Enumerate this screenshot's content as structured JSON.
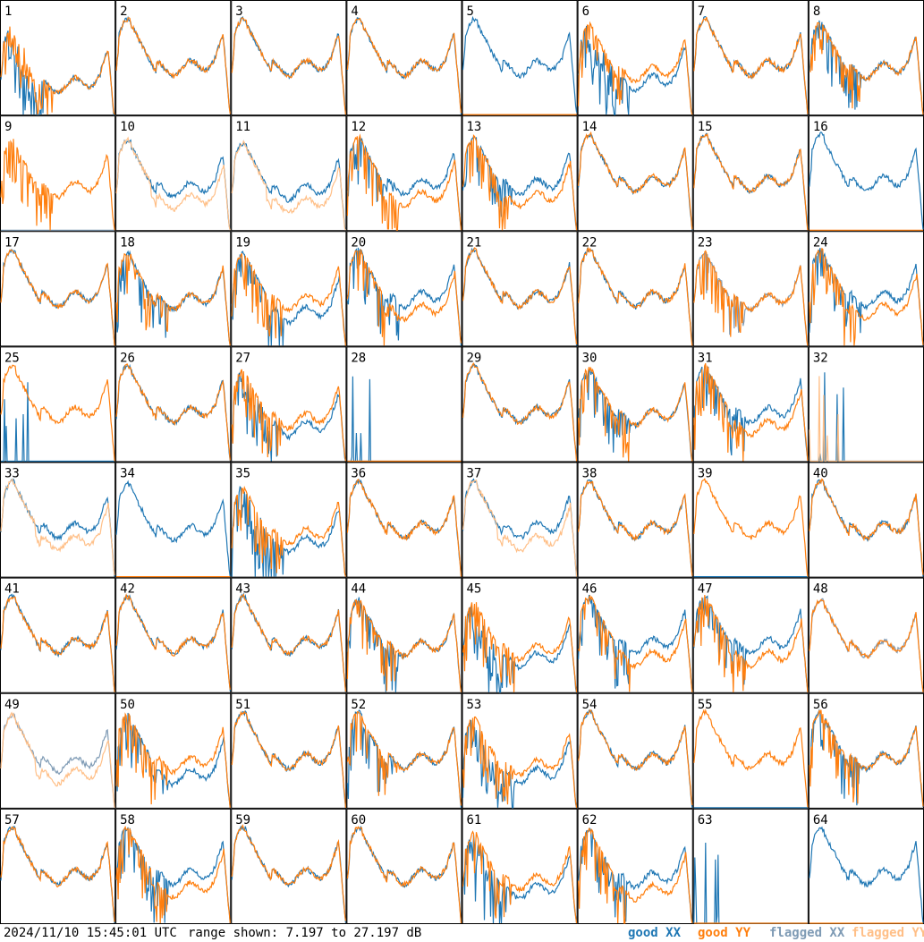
{
  "footer": {
    "timestamp": "2024/11/10 15:45:01 UTC",
    "range_text": "range shown: 7.197 to 27.197 dB",
    "legend": [
      {
        "label": "good XX",
        "color": "#1f77b4"
      },
      {
        "label": "good YY",
        "color": "#ff7f0e"
      },
      {
        "label": "flagged XX",
        "color": "#7f9bb5"
      },
      {
        "label": "flagged YY",
        "color": "#ffbf87"
      }
    ]
  },
  "chart_data": {
    "type": "line",
    "grid": {
      "rows": 8,
      "cols": 8
    },
    "ylim": [
      7.197,
      27.197
    ],
    "y_unit": "dB",
    "panels": [
      {
        "label": "1",
        "xx": "d",
        "yy": "d",
        "shift": -1.5,
        "spiky": 1
      },
      {
        "label": "2",
        "xx": "n",
        "yy": "n",
        "shift": 0,
        "spiky": 0
      },
      {
        "label": "3",
        "xx": "n",
        "yy": "n",
        "shift": 0,
        "spiky": 0
      },
      {
        "label": "4",
        "xx": "n",
        "yy": "n",
        "shift": 0,
        "spiky": 0
      },
      {
        "label": "5",
        "xx": "n",
        "yy": "z",
        "shift": 0,
        "spiky": 0
      },
      {
        "label": "6",
        "xx": "d",
        "yy": "n",
        "shift": -1,
        "spiky": 1
      },
      {
        "label": "7",
        "xx": "n",
        "yy": "n",
        "shift": 0,
        "spiky": 0
      },
      {
        "label": "8",
        "xx": "n",
        "yy": "s",
        "shift": -0.5,
        "spiky": 1
      },
      {
        "label": "9",
        "xx": "fz",
        "yy": "n",
        "shift": -1,
        "spiky": 1
      },
      {
        "label": "10",
        "xx": "n",
        "yy": "fl",
        "shift": -1,
        "spiky": 0
      },
      {
        "label": "11",
        "xx": "n",
        "yy": "fl",
        "shift": -1.5,
        "spiky": 0
      },
      {
        "label": "12",
        "xx": "n",
        "yy": "l",
        "shift": -0.5,
        "spiky": 1
      },
      {
        "label": "13",
        "xx": "n",
        "yy": "l",
        "shift": -0.5,
        "spiky": 1
      },
      {
        "label": "14",
        "xx": "n",
        "yy": "n",
        "shift": 0,
        "spiky": 0
      },
      {
        "label": "15",
        "xx": "n",
        "yy": "n",
        "shift": 0,
        "spiky": 0
      },
      {
        "label": "16",
        "xx": "n",
        "yy": "z",
        "shift": 0,
        "spiky": 0
      },
      {
        "label": "17",
        "xx": "n",
        "yy": "n",
        "shift": 0,
        "spiky": 0
      },
      {
        "label": "18",
        "xx": "n",
        "yy": "n",
        "shift": -0.5,
        "spiky": 1
      },
      {
        "label": "19",
        "xx": "l",
        "yy": "n",
        "shift": -0.5,
        "spiky": 1
      },
      {
        "label": "20",
        "xx": "n",
        "yy": "l",
        "shift": 0,
        "spiky": 1
      },
      {
        "label": "21",
        "xx": "n",
        "yy": "n",
        "shift": 0,
        "spiky": 0
      },
      {
        "label": "22",
        "xx": "n",
        "yy": "n",
        "shift": 0,
        "spiky": 0
      },
      {
        "label": "23",
        "xx": "fn",
        "yy": "n",
        "shift": -0.5,
        "spiky": 1
      },
      {
        "label": "24",
        "xx": "n",
        "yy": "l",
        "shift": 0,
        "spiky": 1
      },
      {
        "label": "25",
        "xx": "h",
        "yy": "n",
        "shift": 0,
        "spiky": 0
      },
      {
        "label": "26",
        "xx": "n",
        "yy": "n",
        "shift": 0,
        "spiky": 0
      },
      {
        "label": "27",
        "xx": "d",
        "yy": "n",
        "shift": -1,
        "spiky": 1
      },
      {
        "label": "28",
        "xx": "h",
        "yy": "z",
        "shift": 0,
        "spiky": 0
      },
      {
        "label": "29",
        "xx": "n",
        "yy": "n",
        "shift": 0,
        "spiky": 0
      },
      {
        "label": "30",
        "xx": "n",
        "yy": "n",
        "shift": -0.5,
        "spiky": 1
      },
      {
        "label": "31",
        "xx": "n",
        "yy": "l",
        "shift": 0,
        "spiky": 1
      },
      {
        "label": "32",
        "xx": "h",
        "yy": "fh",
        "shift": 0.5,
        "spiky": 0
      },
      {
        "label": "33",
        "xx": "n",
        "yy": "fl",
        "shift": 0,
        "spiky": 0
      },
      {
        "label": "34",
        "xx": "n",
        "yy": "z",
        "shift": -0.5,
        "spiky": 0
      },
      {
        "label": "35",
        "xx": "d",
        "yy": "n",
        "shift": -1,
        "spiky": 1
      },
      {
        "label": "36",
        "xx": "n",
        "yy": "n",
        "shift": 0,
        "spiky": 0
      },
      {
        "label": "37",
        "xx": "n",
        "yy": "fl",
        "shift": 0,
        "spiky": 0
      },
      {
        "label": "38",
        "xx": "n",
        "yy": "n",
        "shift": 0,
        "spiky": 0
      },
      {
        "label": "39",
        "xx": "z",
        "yy": "n",
        "shift": 0,
        "spiky": 0
      },
      {
        "label": "40",
        "xx": "n",
        "yy": "n",
        "shift": 0,
        "spiky": 0
      },
      {
        "label": "41",
        "xx": "n",
        "yy": "n",
        "shift": 0,
        "spiky": 0
      },
      {
        "label": "42",
        "xx": "n",
        "yy": "n",
        "shift": 0,
        "spiky": 0
      },
      {
        "label": "43",
        "xx": "n",
        "yy": "n",
        "shift": 0,
        "spiky": 0
      },
      {
        "label": "44",
        "xx": "n",
        "yy": "n",
        "shift": -0.5,
        "spiky": 1
      },
      {
        "label": "45",
        "xx": "d",
        "yy": "n",
        "shift": -1,
        "spiky": 1
      },
      {
        "label": "46",
        "xx": "n",
        "yy": "l",
        "shift": 0,
        "spiky": 1
      },
      {
        "label": "47",
        "xx": "n",
        "yy": "l",
        "shift": 0,
        "spiky": 1
      },
      {
        "label": "48",
        "xx": "fn",
        "yy": "n",
        "shift": -0.5,
        "spiky": 0
      },
      {
        "label": "49",
        "xx": "fn",
        "yy": "fl",
        "shift": -0.5,
        "spiky": 0
      },
      {
        "label": "50",
        "xx": "l",
        "yy": "n",
        "shift": -0.5,
        "spiky": 1
      },
      {
        "label": "51",
        "xx": "n",
        "yy": "n",
        "shift": 0,
        "spiky": 0
      },
      {
        "label": "52",
        "xx": "n",
        "yy": "n",
        "shift": 0,
        "spiky": 1
      },
      {
        "label": "53",
        "xx": "d",
        "yy": "n",
        "shift": -1,
        "spiky": 1
      },
      {
        "label": "54",
        "xx": "n",
        "yy": "n",
        "shift": 0,
        "spiky": 0
      },
      {
        "label": "55",
        "xx": "z",
        "yy": "n",
        "shift": 0,
        "spiky": 0
      },
      {
        "label": "56",
        "xx": "n",
        "yy": "n",
        "shift": 0,
        "spiky": 1
      },
      {
        "label": "57",
        "xx": "n",
        "yy": "n",
        "shift": 0,
        "spiky": 0
      },
      {
        "label": "58",
        "xx": "n",
        "yy": "l",
        "shift": 0,
        "spiky": 1
      },
      {
        "label": "59",
        "xx": "n",
        "yy": "n",
        "shift": 0,
        "spiky": 0
      },
      {
        "label": "60",
        "xx": "n",
        "yy": "n",
        "shift": 0,
        "spiky": 0
      },
      {
        "label": "61",
        "xx": "d",
        "yy": "n",
        "shift": -1,
        "spiky": 1
      },
      {
        "label": "62",
        "xx": "n",
        "yy": "l",
        "shift": -0.5,
        "spiky": 1
      },
      {
        "label": "63",
        "xx": "h",
        "yy": "z",
        "shift": 0,
        "spiky": 0
      },
      {
        "label": "64",
        "xx": "n",
        "yy": "z",
        "shift": 0,
        "spiky": 0
      }
    ]
  }
}
